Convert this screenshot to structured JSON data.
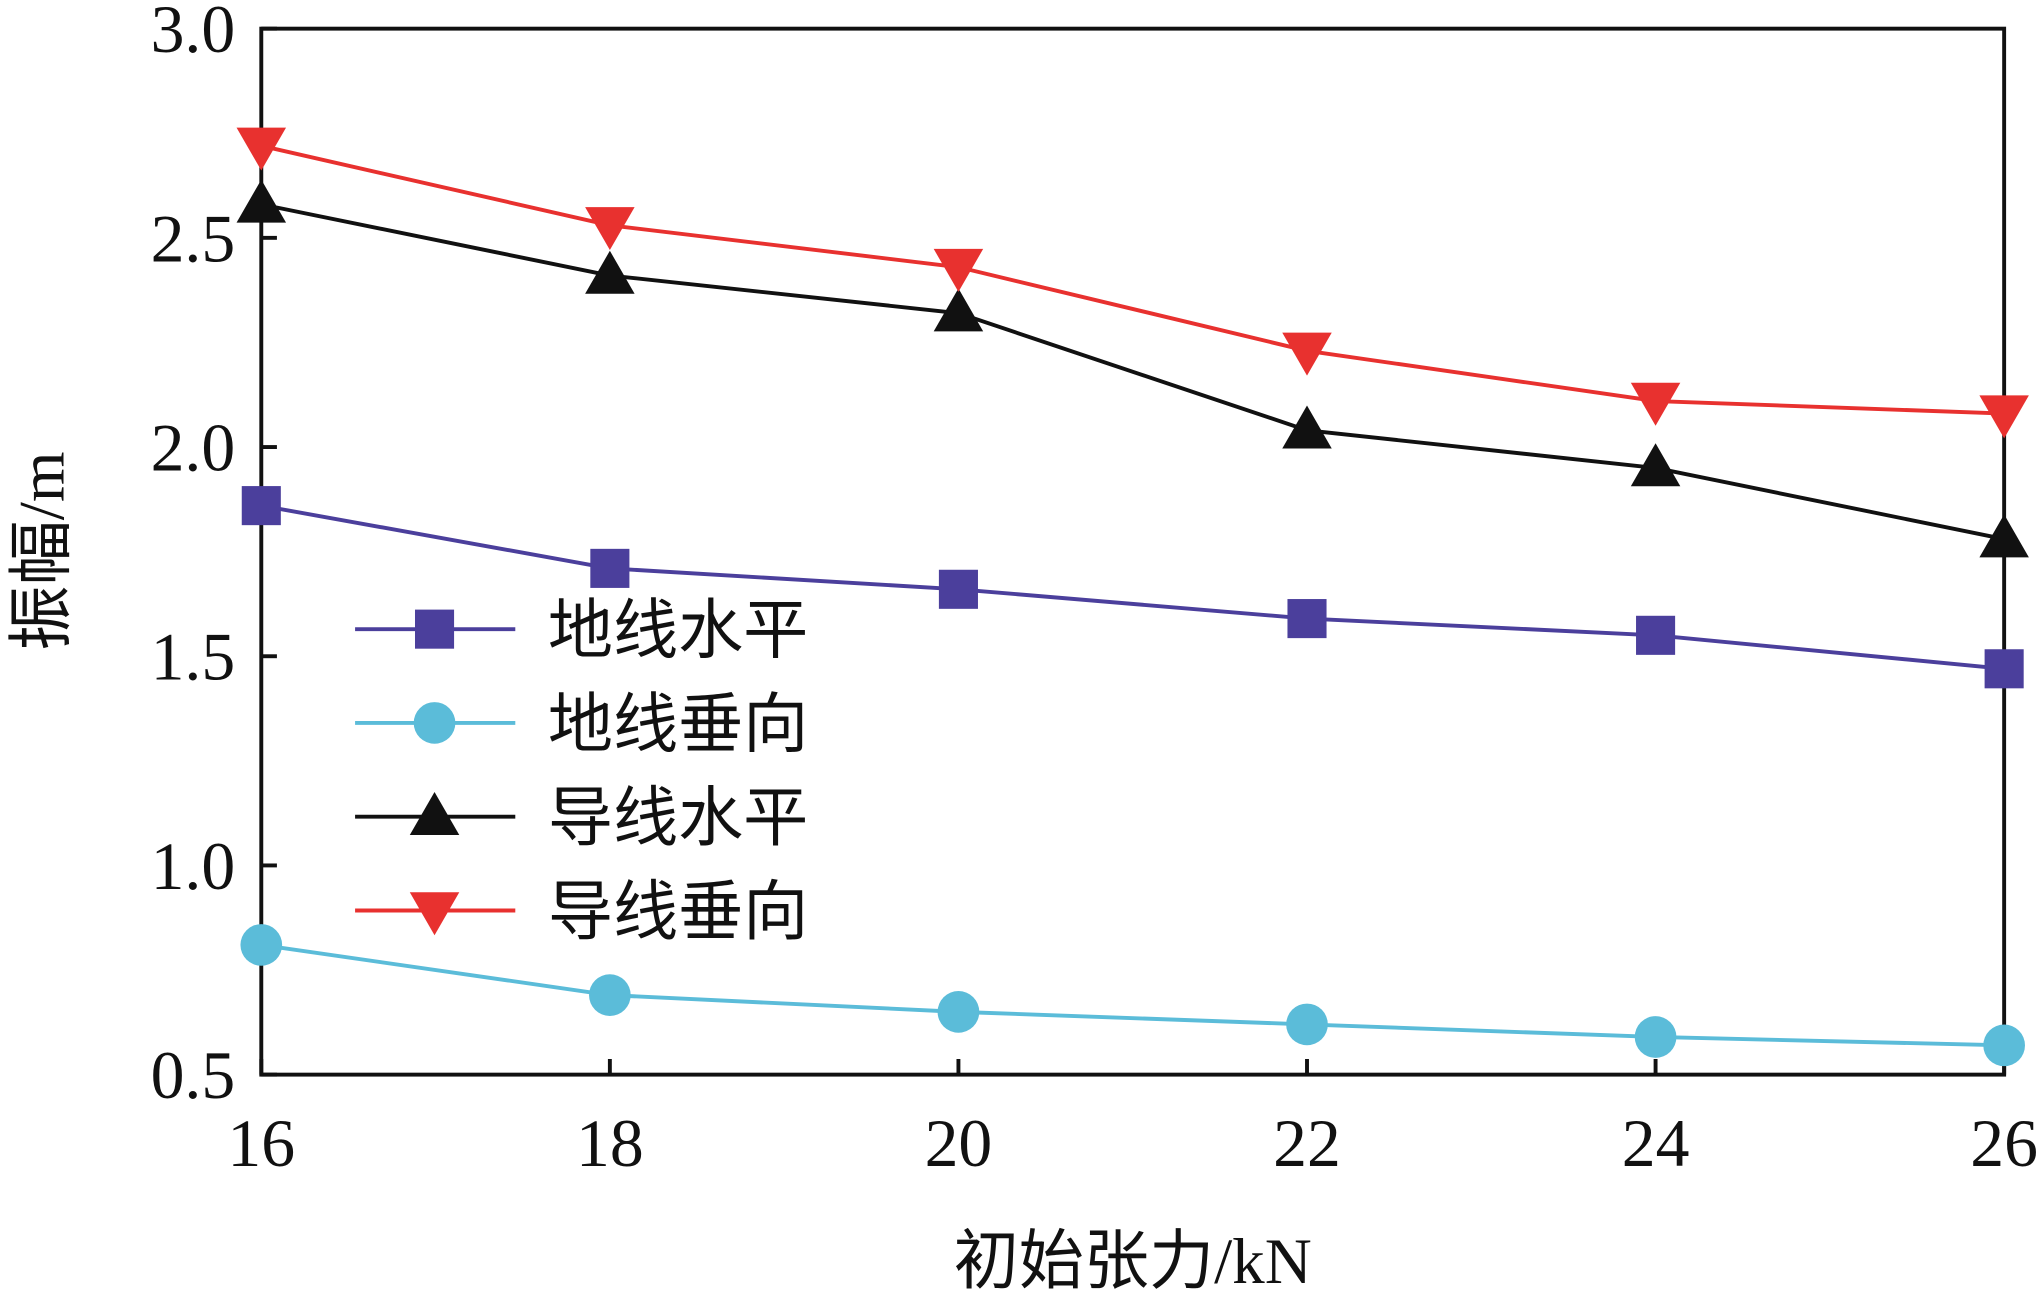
{
  "chart_data": {
    "type": "line",
    "x": [
      16,
      18,
      20,
      22,
      24,
      26
    ],
    "xlim": [
      16,
      26
    ],
    "xticks": [
      16,
      18,
      20,
      22,
      24,
      26
    ],
    "ylim": [
      0.5,
      3
    ],
    "yticks": [
      0.5,
      {
        "value": 1,
        "label": "1.0"
      },
      1.5,
      {
        "value": 2,
        "label": "2.0"
      },
      2.5,
      {
        "value": 3,
        "label": "3.0"
      }
    ],
    "xlabel": "初始张力/kN",
    "ylabel": "振幅/m",
    "legend": "left",
    "series": [
      {
        "name": "地线水平",
        "color": "#4b3f9c",
        "marker": "square",
        "values": [
          1.86,
          1.71,
          1.66,
          1.59,
          1.55,
          1.47
        ]
      },
      {
        "name": "地线垂向",
        "color": "#5bbcd9",
        "marker": "circle",
        "values": [
          0.81,
          0.69,
          0.65,
          0.62,
          0.59,
          0.57
        ]
      },
      {
        "name": "导线水平",
        "color": "#111111",
        "marker": "triangle-up",
        "values": [
          2.58,
          2.41,
          2.32,
          2.04,
          1.95,
          1.78
        ]
      },
      {
        "name": "导线垂向",
        "color": "#e8312f",
        "marker": "triangle-down",
        "values": [
          2.72,
          2.53,
          2.43,
          2.23,
          2.11,
          2.08
        ]
      }
    ]
  }
}
